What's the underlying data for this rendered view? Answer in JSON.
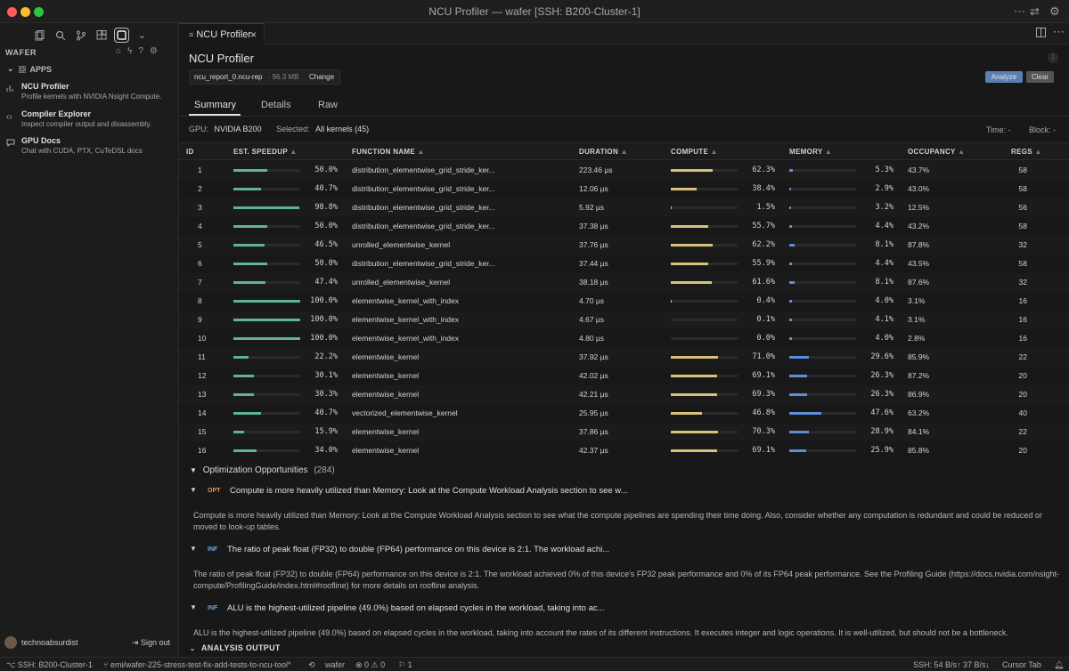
{
  "window": {
    "title": "NCU Profiler — wafer [SSH: B200-Cluster-1]"
  },
  "sidebar": {
    "title": "WAFER",
    "apps_header": "APPS",
    "apps": [
      {
        "title": "NCU Profiler",
        "subtitle": "Profile kernels with NVIDIA Nsight Compute."
      },
      {
        "title": "Compiler Explorer",
        "subtitle": "Inspect compiler output and disassembly."
      },
      {
        "title": "GPU Docs",
        "subtitle": "Chat with CUDA, PTX, CuTeDSL docs"
      }
    ],
    "username": "technoabsurdist",
    "signout": "Sign out"
  },
  "editor": {
    "tab_label": "NCU Profiler",
    "page_title": "NCU Profiler",
    "file_name": "ncu_report_0.ncu-rep",
    "file_size": "· 96.3 MB",
    "change_label": "Change",
    "analyze_label": "Analyze",
    "clear_label": "Clear",
    "view_tabs": [
      "Summary",
      "Details",
      "Raw"
    ],
    "gpu_label": "GPU:",
    "gpu_value": "NVIDIA B200",
    "selected_label": "Selected:",
    "selected_value": "All kernels (45)",
    "time_filter": "Time: -",
    "block_filter": "Block: -"
  },
  "table": {
    "headers": [
      "ID",
      "EST. SPEEDUP",
      "FUNCTION NAME",
      "DURATION",
      "COMPUTE",
      "MEMORY",
      "OCCUPANCY",
      "REGS"
    ],
    "rows": [
      {
        "id": "1",
        "speedup": 50.0,
        "speedup_text": "50.0%",
        "fn": "distribution_elementwise_grid_stride_ker...",
        "duration": "223.46 µs",
        "compute": 62.3,
        "compute_text": "62.3%",
        "memory": 5.3,
        "memory_text": "5.3%",
        "occupancy": "43.7%",
        "regs": "58"
      },
      {
        "id": "2",
        "speedup": 40.7,
        "speedup_text": "40.7%",
        "fn": "distribution_elementwise_grid_stride_ker...",
        "duration": "12.06 µs",
        "compute": 38.4,
        "compute_text": "38.4%",
        "memory": 2.9,
        "memory_text": "2.9%",
        "occupancy": "43.0%",
        "regs": "58"
      },
      {
        "id": "3",
        "speedup": 98.8,
        "speedup_text": "98.8%",
        "fn": "distribution_elementwise_grid_stride_ker...",
        "duration": "5.92 µs",
        "compute": 1.5,
        "compute_text": "1.5%",
        "memory": 3.2,
        "memory_text": "3.2%",
        "occupancy": "12.5%",
        "regs": "56"
      },
      {
        "id": "4",
        "speedup": 50.0,
        "speedup_text": "50.0%",
        "fn": "distribution_elementwise_grid_stride_ker...",
        "duration": "37.38 µs",
        "compute": 55.7,
        "compute_text": "55.7%",
        "memory": 4.4,
        "memory_text": "4.4%",
        "occupancy": "43.2%",
        "regs": "58"
      },
      {
        "id": "5",
        "speedup": 46.5,
        "speedup_text": "46.5%",
        "fn": "unrolled_elementwise_kernel",
        "duration": "37.76 µs",
        "compute": 62.2,
        "compute_text": "62.2%",
        "memory": 8.1,
        "memory_text": "8.1%",
        "occupancy": "87.8%",
        "regs": "32"
      },
      {
        "id": "6",
        "speedup": 50.0,
        "speedup_text": "50.0%",
        "fn": "distribution_elementwise_grid_stride_ker...",
        "duration": "37.44 µs",
        "compute": 55.9,
        "compute_text": "55.9%",
        "memory": 4.4,
        "memory_text": "4.4%",
        "occupancy": "43.5%",
        "regs": "58"
      },
      {
        "id": "7",
        "speedup": 47.4,
        "speedup_text": "47.4%",
        "fn": "unrolled_elementwise_kernel",
        "duration": "38.18 µs",
        "compute": 61.6,
        "compute_text": "61.6%",
        "memory": 8.1,
        "memory_text": "8.1%",
        "occupancy": "87.6%",
        "regs": "32"
      },
      {
        "id": "8",
        "speedup": 100.0,
        "speedup_text": "100.0%",
        "fn": "elementwise_kernel_with_index",
        "duration": "4.70 µs",
        "compute": 0.4,
        "compute_text": "0.4%",
        "memory": 4.0,
        "memory_text": "4.0%",
        "occupancy": "3.1%",
        "regs": "16"
      },
      {
        "id": "9",
        "speedup": 100.0,
        "speedup_text": "100.0%",
        "fn": "elementwise_kernel_with_index",
        "duration": "4.67 µs",
        "compute": 0.1,
        "compute_text": "0.1%",
        "memory": 4.1,
        "memory_text": "4.1%",
        "occupancy": "3.1%",
        "regs": "16"
      },
      {
        "id": "10",
        "speedup": 100.0,
        "speedup_text": "100.0%",
        "fn": "elementwise_kernel_with_index",
        "duration": "4.80 µs",
        "compute": 0.0,
        "compute_text": "0.0%",
        "memory": 4.0,
        "memory_text": "4.0%",
        "occupancy": "2.8%",
        "regs": "16"
      },
      {
        "id": "11",
        "speedup": 22.2,
        "speedup_text": "22.2%",
        "fn": "elementwise_kernel",
        "duration": "37.92 µs",
        "compute": 71.0,
        "compute_text": "71.0%",
        "memory": 29.6,
        "memory_text": "29.6%",
        "occupancy": "85.9%",
        "regs": "22"
      },
      {
        "id": "12",
        "speedup": 30.1,
        "speedup_text": "30.1%",
        "fn": "elementwise_kernel",
        "duration": "42.02 µs",
        "compute": 69.1,
        "compute_text": "69.1%",
        "memory": 26.3,
        "memory_text": "26.3%",
        "occupancy": "87.2%",
        "regs": "20"
      },
      {
        "id": "13",
        "speedup": 30.3,
        "speedup_text": "30.3%",
        "fn": "elementwise_kernel",
        "duration": "42.21 µs",
        "compute": 69.3,
        "compute_text": "69.3%",
        "memory": 26.3,
        "memory_text": "26.3%",
        "occupancy": "86.9%",
        "regs": "20"
      },
      {
        "id": "14",
        "speedup": 40.7,
        "speedup_text": "40.7%",
        "fn": "vectorized_elementwise_kernel",
        "duration": "25.95 µs",
        "compute": 46.8,
        "compute_text": "46.8%",
        "memory": 47.6,
        "memory_text": "47.6%",
        "occupancy": "63.2%",
        "regs": "40"
      },
      {
        "id": "15",
        "speedup": 15.9,
        "speedup_text": "15.9%",
        "fn": "elementwise_kernel",
        "duration": "37.86 µs",
        "compute": 70.3,
        "compute_text": "70.3%",
        "memory": 28.9,
        "memory_text": "28.9%",
        "occupancy": "84.1%",
        "regs": "22"
      },
      {
        "id": "16",
        "speedup": 34.0,
        "speedup_text": "34.0%",
        "fn": "elementwise_kernel",
        "duration": "42.37 µs",
        "compute": 69.1,
        "compute_text": "69.1%",
        "memory": 25.9,
        "memory_text": "25.9%",
        "occupancy": "85.8%",
        "regs": "20"
      }
    ]
  },
  "opportunities": {
    "header": "Optimization Opportunities",
    "count": "(284)",
    "items": [
      {
        "badge": "OPT",
        "title": "Compute is more heavily utilized than Memory: Look at the Compute Workload Analysis section to see w...",
        "body": "Compute is more heavily utilized than Memory: Look at the Compute Workload Analysis section to see what the compute pipelines are spending their time doing. Also, consider whether any computation is redundant and could be reduced or moved to look-up tables."
      },
      {
        "badge": "INF",
        "title": "The ratio of peak float (FP32) to double (FP64) performance on this device is 2:1. The workload achi...",
        "body": "The ratio of peak float (FP32) to double (FP64) performance on this device is 2:1. The workload achieved 0% of this device's FP32 peak performance and 0% of its FP64 peak performance. See the Profiling Guide (https://docs.nvidia.com/nsight-compute/ProfilingGuide/index.html#roofline) for more details on roofline analysis."
      },
      {
        "badge": "INF",
        "title": "ALU is the highest-utilized pipeline (49.0%) based on elapsed cycles in the workload, taking into ac...",
        "body": "ALU is the highest-utilized pipeline (49.0%) based on elapsed cycles in the workload, taking into account the rates of its different instructions. It executes integer and logic operations. It is well-utilized, but should not be a bottleneck."
      }
    ],
    "analysis_output": "ANALYSIS OUTPUT"
  },
  "statusbar": {
    "remote": "SSH: B200-Cluster-1",
    "branch": "emi/wafer-225-stress-test-fix-add-tests-to-ncu-tool*",
    "app": "wafer",
    "problems": "⊗ 0 ⚠ 0",
    "ports": "1",
    "ssh_speed": "SSH: 54 B/s↑ 37 B/s↓",
    "cursor_tab": "Cursor Tab"
  },
  "colors": {
    "speedup": "#5fb58f",
    "compute": "#d8c27a",
    "memory": "#5b8fd9",
    "opt": "#e0a040",
    "inf": "#6fa9d8"
  }
}
